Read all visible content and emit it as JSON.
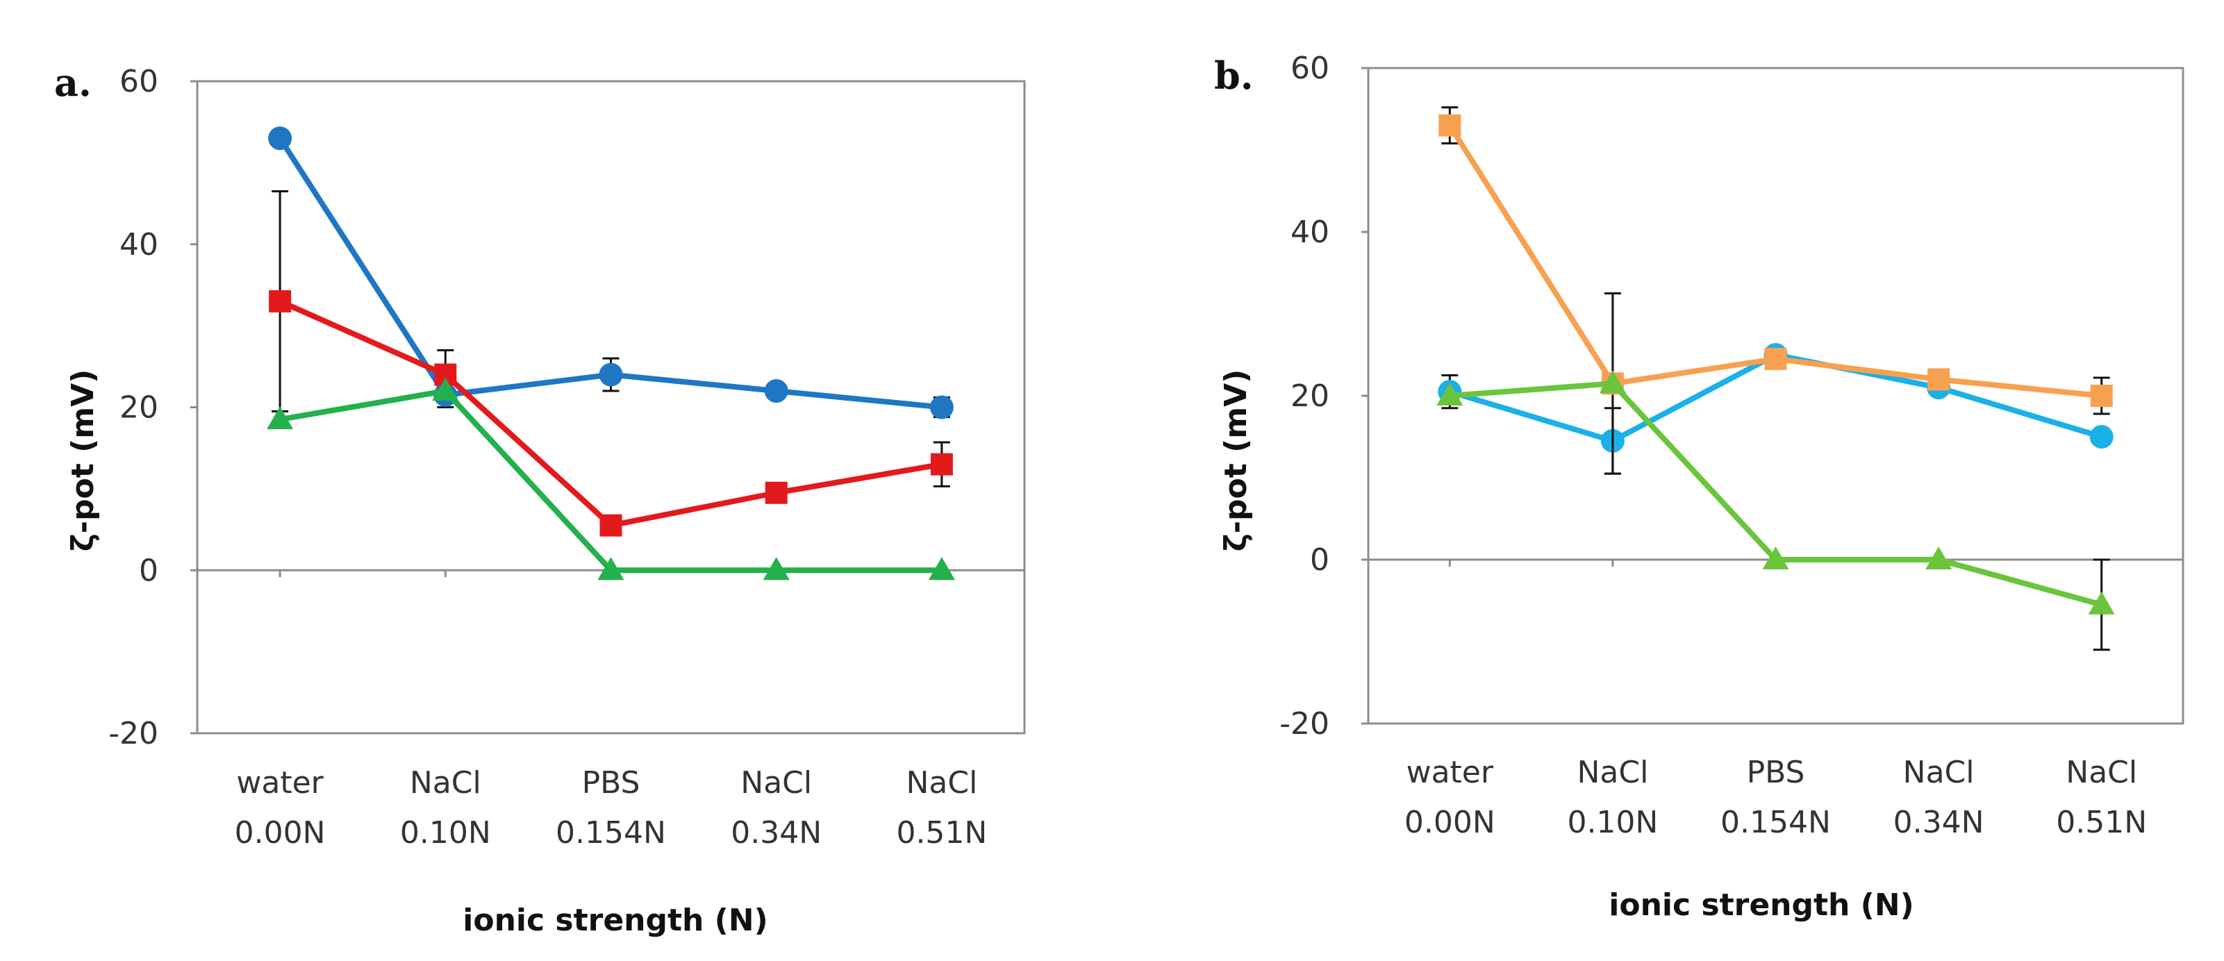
{
  "chart_data": [
    {
      "type": "line",
      "panel_label": "a.",
      "ylabel": "ζ-pot (mV)",
      "xlabel": "ionic strength (N)",
      "ylim": [
        -20,
        60
      ],
      "yticks": [
        -20,
        0,
        20,
        40,
        60
      ],
      "categories": [
        {
          "line1": "water",
          "line2": "0.00N"
        },
        {
          "line1": "NaCl",
          "line2": "0.10N"
        },
        {
          "line1": "PBS",
          "line2": "0.154N"
        },
        {
          "line1": "NaCl",
          "line2": "0.34N"
        },
        {
          "line1": "NaCl",
          "line2": "0.51N"
        }
      ],
      "grid": false,
      "series": [
        {
          "color": "#1f77c4",
          "marker": "circle",
          "values": [
            53,
            21.5,
            24,
            22,
            20
          ],
          "errors": [
            0,
            1.5,
            2,
            0.8,
            1.2
          ]
        },
        {
          "color": "#e31a1c",
          "marker": "square",
          "values": [
            33,
            24,
            5.5,
            9.5,
            13
          ],
          "errors": [
            13.5,
            3,
            0.5,
            1.2,
            2.7
          ]
        },
        {
          "color": "#22b14c",
          "marker": "triangle",
          "values": [
            18.5,
            22,
            0,
            0,
            0
          ],
          "errors": [
            0,
            0,
            0,
            0,
            0
          ]
        }
      ]
    },
    {
      "type": "line",
      "panel_label": "b.",
      "ylabel": "ζ-pot (mV)",
      "xlabel": "ionic strength (N)",
      "ylim": [
        -20,
        60
      ],
      "yticks": [
        -20,
        0,
        20,
        40,
        60
      ],
      "categories": [
        {
          "line1": "water",
          "line2": "0.00N"
        },
        {
          "line1": "NaCl",
          "line2": "0.10N"
        },
        {
          "line1": "PBS",
          "line2": "0.154N"
        },
        {
          "line1": "NaCl",
          "line2": "0.34N"
        },
        {
          "line1": "NaCl",
          "line2": "0.51N"
        }
      ],
      "grid": false,
      "series": [
        {
          "color": "#1ab0e8",
          "marker": "circle",
          "values": [
            20.5,
            14.5,
            25,
            21,
            15
          ],
          "errors": [
            2,
            4,
            0,
            0,
            0
          ]
        },
        {
          "color": "#f7a150",
          "marker": "square",
          "values": [
            53,
            21.5,
            24.5,
            22,
            20
          ],
          "errors": [
            2.2,
            11,
            0,
            0,
            2.2
          ]
        },
        {
          "color": "#6ac43c",
          "marker": "triangle",
          "values": [
            20,
            21.5,
            0,
            0,
            -5.5
          ],
          "errors": [
            0,
            0,
            0,
            0,
            5.5
          ]
        }
      ]
    }
  ]
}
